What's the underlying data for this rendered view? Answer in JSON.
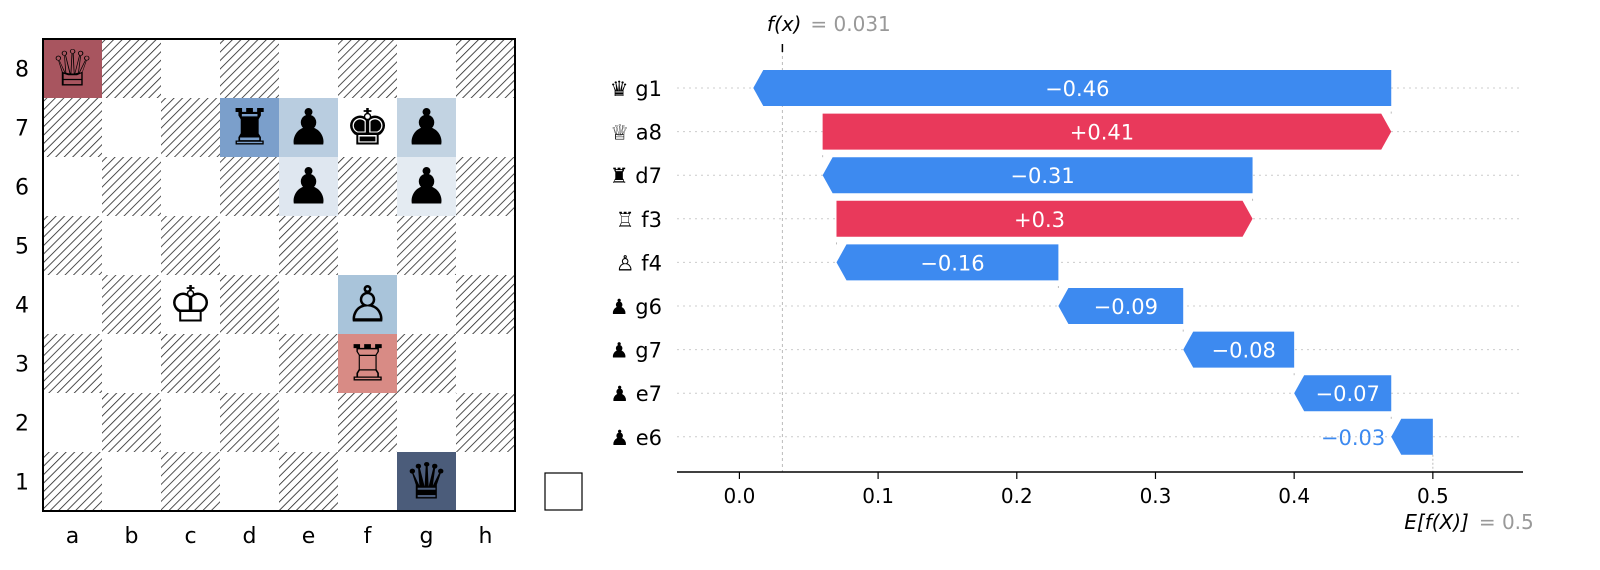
{
  "board": {
    "files": [
      "a",
      "b",
      "c",
      "d",
      "e",
      "f",
      "g",
      "h"
    ],
    "ranks": [
      "8",
      "7",
      "6",
      "5",
      "4",
      "3",
      "2",
      "1"
    ],
    "pieces": [
      {
        "square": "a8",
        "glyph": "♕",
        "highlight": "#a8555f"
      },
      {
        "square": "d7",
        "glyph": "♜",
        "highlight": "#7b9fcb"
      },
      {
        "square": "e7",
        "glyph": "♟",
        "highlight": "#b9cde0"
      },
      {
        "square": "f7",
        "glyph": "♚",
        "highlight": ""
      },
      {
        "square": "g7",
        "glyph": "♟",
        "highlight": "#c2d3e2"
      },
      {
        "square": "e6",
        "glyph": "♟",
        "highlight": "#dfe7f0"
      },
      {
        "square": "g6",
        "glyph": "♟",
        "highlight": "#e4ebf2"
      },
      {
        "square": "c4",
        "glyph": "♔",
        "highlight": ""
      },
      {
        "square": "f4",
        "glyph": "♙",
        "highlight": "#a9c4da"
      },
      {
        "square": "f3",
        "glyph": "♖",
        "highlight": "#d88b85"
      },
      {
        "square": "g1",
        "glyph": "♛",
        "highlight": "#4b5c7a"
      }
    ]
  },
  "chart_data": {
    "type": "bar",
    "subtype": "waterfall",
    "fx_label": "f(x)",
    "fx_value_text": "= 0.031",
    "fx_value": 0.031,
    "ex_label": "E[f(X)]",
    "ex_value_text": "= 0.5",
    "ex_value": 0.5,
    "xlim": [
      -0.045,
      0.565
    ],
    "xticks": [
      0.0,
      0.1,
      0.2,
      0.3,
      0.4,
      0.5
    ],
    "xtick_labels": [
      "0.0",
      "0.1",
      "0.2",
      "0.3",
      "0.4",
      "0.5"
    ],
    "features": [
      {
        "label": "♛ g1",
        "value": -0.46,
        "value_label": "−0.46"
      },
      {
        "label": "♕ a8",
        "value": 0.41,
        "value_label": "+0.41"
      },
      {
        "label": "♜ d7",
        "value": -0.31,
        "value_label": "−0.31"
      },
      {
        "label": "♖ f3",
        "value": 0.3,
        "value_label": "+0.3"
      },
      {
        "label": "♙ f4",
        "value": -0.16,
        "value_label": "−0.16"
      },
      {
        "label": "♟ g6",
        "value": -0.09,
        "value_label": "−0.09"
      },
      {
        "label": "♟ g7",
        "value": -0.08,
        "value_label": "−0.08"
      },
      {
        "label": "♟ e7",
        "value": -0.07,
        "value_label": "−0.07"
      },
      {
        "label": "♟ e6",
        "value": -0.03,
        "value_label": "−0.03"
      }
    ],
    "colors": {
      "positive": "#e9395b",
      "negative": "#3d8af0",
      "muted": "#999999"
    }
  }
}
